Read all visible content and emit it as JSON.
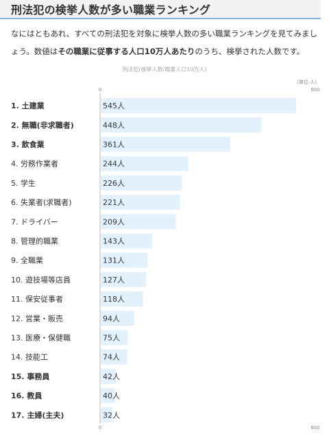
{
  "header": {
    "title": "刑法犯の検挙人数が多い職業ランキング"
  },
  "intro": {
    "before": "なにはともあれ、すべての刑法犯を対象に検挙人数の多い職業ランキングを見てみましょう。数値は",
    "bold": "その職業に従事する人口10万人あたり",
    "after": "のうち、検挙された人数です。"
  },
  "chart_data": {
    "type": "bar",
    "orientation": "horizontal",
    "title": "刑法犯(検挙人数/職業人口10万人)",
    "unit_note": "(単位:人)",
    "value_suffix": "人",
    "xlim": [
      0,
      600
    ],
    "ticks": [
      "0",
      "600"
    ],
    "categories": [
      "1. 土建業",
      "2. 無職(非求職者)",
      "3. 飲食業",
      "4. 労務作業者",
      "5. 学生",
      "6. 失業者(求職者)",
      "7. ドライバー",
      "8. 管理的職業",
      "9. 全職業",
      "10. 遊技場等店員",
      "11. 保安従事者",
      "12. 営業・販売",
      "13. 医療・保健職",
      "14. 技能工",
      "15. 事務員",
      "16. 教員",
      "17. 主婦(主夫)"
    ],
    "values": [
      545,
      448,
      361,
      244,
      226,
      221,
      209,
      143,
      131,
      127,
      118,
      94,
      75,
      74,
      42,
      40,
      32
    ],
    "bold_categories": [
      "1. 土建業",
      "2. 無職(非求職者)",
      "3. 飲食業",
      "15. 事務員",
      "16. 教員",
      "17. 主婦(主夫)"
    ],
    "bar_color": "#e3f1fd",
    "grid": false
  }
}
